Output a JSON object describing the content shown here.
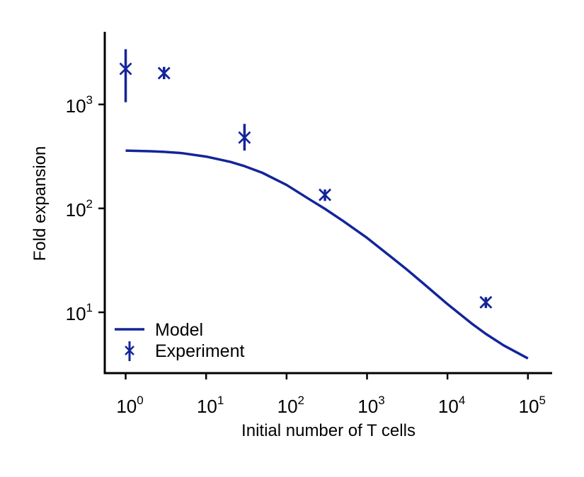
{
  "chart_data": {
    "type": "line",
    "xlabel": "Initial number of T cells",
    "ylabel": "Fold expansion",
    "x_scale": "log",
    "y_scale": "log",
    "xlim": [
      0.55,
      200000
    ],
    "ylim": [
      2.6,
      5000
    ],
    "x_ticks": [
      {
        "value": 1,
        "base": "10",
        "exp": "0"
      },
      {
        "value": 10,
        "base": "10",
        "exp": "1"
      },
      {
        "value": 100,
        "base": "10",
        "exp": "2"
      },
      {
        "value": 1000,
        "base": "10",
        "exp": "3"
      },
      {
        "value": 10000,
        "base": "10",
        "exp": "4"
      },
      {
        "value": 100000,
        "base": "10",
        "exp": "5"
      }
    ],
    "y_ticks": [
      {
        "value": 10,
        "base": "10",
        "exp": "1"
      },
      {
        "value": 100,
        "base": "10",
        "exp": "2"
      },
      {
        "value": 1000,
        "base": "10",
        "exp": "3"
      }
    ],
    "grid": false,
    "legend_position": "bottom-left",
    "color": "#13249a",
    "series": [
      {
        "name": "Model",
        "kind": "line",
        "x": [
          1,
          2,
          3,
          5,
          10,
          20,
          30,
          50,
          100,
          200,
          300,
          500,
          1000,
          2000,
          3000,
          5000,
          10000,
          20000,
          30000,
          50000,
          100000
        ],
        "y": [
          360,
          355,
          350,
          340,
          315,
          280,
          255,
          220,
          168,
          120,
          99,
          76,
          52,
          34,
          26.5,
          19,
          12,
          7.8,
          6.2,
          4.8,
          3.6
        ]
      },
      {
        "name": "Experiment",
        "kind": "errorbar",
        "x": [
          1,
          3,
          30,
          300,
          30000
        ],
        "y": [
          2200,
          2000,
          480,
          135,
          12.5
        ],
        "y_low": [
          1050,
          1750,
          360,
          118,
          11
        ],
        "y_high": [
          3400,
          2300,
          650,
          152,
          14
        ]
      }
    ]
  }
}
